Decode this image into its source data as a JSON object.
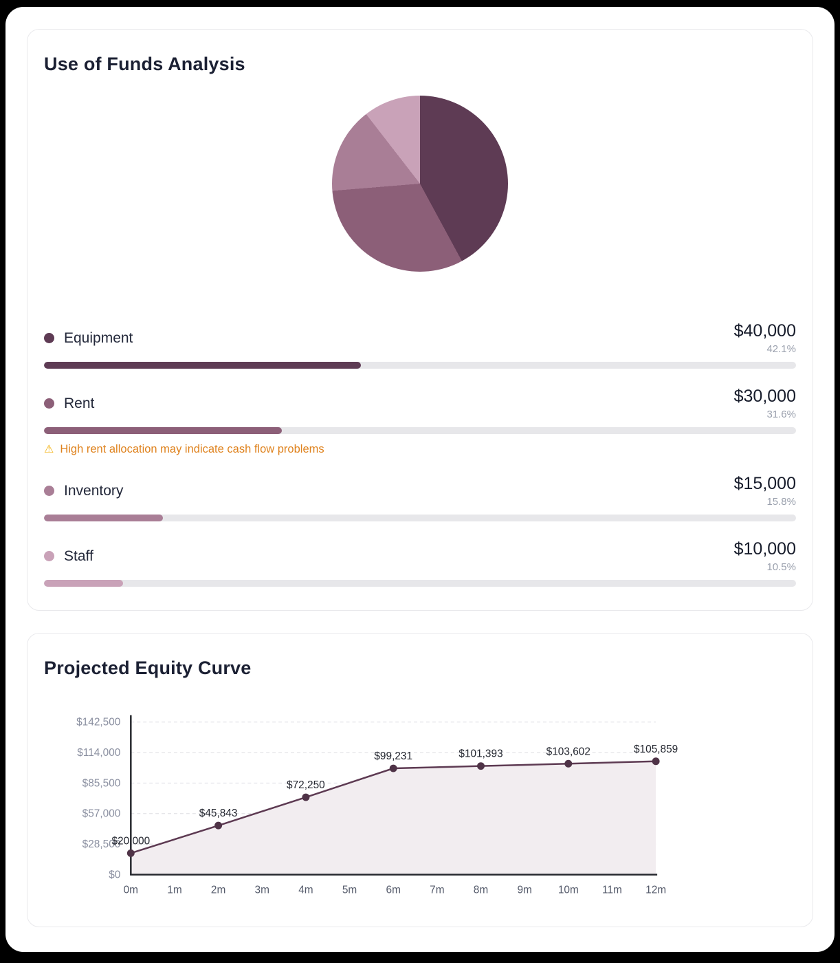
{
  "cards": {
    "funds": {
      "title": "Use of Funds Analysis",
      "items": [
        {
          "label": "Equipment",
          "amount": "$40,000",
          "percent": "42.1%",
          "pct": 42.1,
          "color": "#5e3b54"
        },
        {
          "label": "Rent",
          "amount": "$30,000",
          "percent": "31.6%",
          "pct": 31.6,
          "color": "#8c5f78",
          "warning": "High rent allocation may indicate cash flow problems",
          "warning_icon": "⚠"
        },
        {
          "label": "Inventory",
          "amount": "$15,000",
          "percent": "15.8%",
          "pct": 15.8,
          "color": "#a97e96"
        },
        {
          "label": "Staff",
          "amount": "$10,000",
          "percent": "10.5%",
          "pct": 10.5,
          "color": "#c9a2b8"
        }
      ]
    },
    "equity": {
      "title": "Projected Equity Curve"
    }
  },
  "chart_data": [
    {
      "type": "pie",
      "title": "Use of Funds Analysis",
      "labels": [
        "Equipment",
        "Rent",
        "Inventory",
        "Staff"
      ],
      "values": [
        40000,
        30000,
        15000,
        10000
      ],
      "percents": [
        42.1,
        31.6,
        15.8,
        10.5
      ],
      "colors": [
        "#5e3b54",
        "#8c5f78",
        "#a97e96",
        "#c9a2b8"
      ],
      "start_angle_deg": 0,
      "direction": "clockwise"
    },
    {
      "type": "area",
      "title": "Projected Equity Curve",
      "x_labels": [
        "0m",
        "1m",
        "2m",
        "3m",
        "4m",
        "5m",
        "6m",
        "7m",
        "8m",
        "9m",
        "10m",
        "11m",
        "12m"
      ],
      "points": [
        {
          "x": 0,
          "y": 20000,
          "label": "$20,000"
        },
        {
          "x": 2,
          "y": 45843,
          "label": "$45,843"
        },
        {
          "x": 4,
          "y": 72250,
          "label": "$72,250"
        },
        {
          "x": 6,
          "y": 99231,
          "label": "$99,231"
        },
        {
          "x": 8,
          "y": 101393,
          "label": "$101,393"
        },
        {
          "x": 10,
          "y": 103602,
          "label": "$103,602"
        },
        {
          "x": 12,
          "y": 105859,
          "label": "$105,859"
        }
      ],
      "y_ticks": [
        "$0",
        "$28,500",
        "$57,000",
        "$85,500",
        "$114,000",
        "$142,500"
      ],
      "y_tick_values": [
        0,
        28500,
        57000,
        85500,
        114000,
        142500
      ],
      "ylim": [
        0,
        142500
      ],
      "grid": "dashed-horizontal",
      "line_color": "#5d3a52",
      "point_color": "#4f3347",
      "fill_color": "#f2edf0"
    }
  ]
}
